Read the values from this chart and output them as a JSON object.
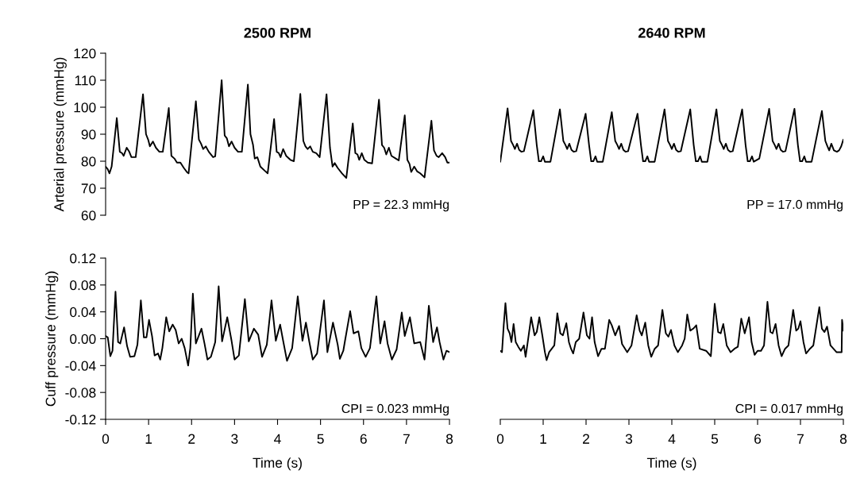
{
  "chart_data": [
    {
      "type": "line",
      "title": "2500 RPM",
      "ylabel": "Arterial pressure (mmHg)",
      "xlim": [
        0,
        8
      ],
      "ylim": [
        60,
        120
      ],
      "yticks": [
        60,
        70,
        80,
        90,
        100,
        110,
        120
      ],
      "tick_labels": "y",
      "annotations": [
        "PP = 22.3 mmHg"
      ],
      "series": [
        {
          "color": "#000000",
          "x": [
            0,
            0.05,
            0.09,
            0.14,
            0.26,
            0.33,
            0.38,
            0.42,
            0.49,
            0.55,
            0.6,
            0.7,
            0.87,
            0.94,
            0.99,
            1.03,
            1.1,
            1.17,
            1.25,
            1.33,
            1.47,
            1.53,
            1.6,
            1.66,
            1.74,
            1.82,
            1.9,
            1.93,
            2.1,
            2.17,
            2.22,
            2.27,
            2.33,
            2.4,
            2.5,
            2.55,
            2.7,
            2.77,
            2.82,
            2.87,
            2.93,
            3.0,
            3.08,
            3.17,
            3.31,
            3.37,
            3.43,
            3.47,
            3.53,
            3.6,
            3.7,
            3.77,
            3.92,
            3.98,
            4.03,
            4.07,
            4.13,
            4.2,
            4.3,
            4.38,
            4.53,
            4.6,
            4.65,
            4.7,
            4.76,
            4.82,
            4.9,
            4.98,
            5.14,
            5.22,
            5.28,
            5.33,
            5.4,
            5.5,
            5.6,
            5.75,
            5.81,
            5.86,
            5.9,
            5.96,
            6.02,
            6.1,
            6.2,
            6.36,
            6.43,
            6.48,
            6.53,
            6.59,
            6.65,
            6.75,
            6.82,
            6.96,
            7.02,
            7.07,
            7.11,
            7.18,
            7.25,
            7.32,
            7.42,
            7.58,
            7.64,
            7.7,
            7.75,
            7.83,
            7.9,
            7.95,
            8.0
          ],
          "values": [
            78,
            77,
            75.5,
            78,
            96,
            83.5,
            83,
            82,
            85,
            83.5,
            81.5,
            81.5,
            104.8,
            90,
            88,
            85.5,
            87.3,
            85,
            83.5,
            83.5,
            99.7,
            82,
            81,
            79.5,
            79.5,
            77.5,
            75.8,
            75.5,
            102.2,
            88,
            86.5,
            84.5,
            85.5,
            83.5,
            81.5,
            81.8,
            110,
            89.5,
            88.5,
            85.5,
            87.3,
            85,
            83.5,
            83.5,
            108.4,
            90,
            86,
            81,
            81.5,
            78,
            76.5,
            75.5,
            95.6,
            83.5,
            83,
            81.5,
            84.5,
            82,
            80.5,
            80,
            104.9,
            87.5,
            85.5,
            84.5,
            85.5,
            83.5,
            83,
            81.5,
            104.8,
            85,
            78,
            79.3,
            77.5,
            75.5,
            73.8,
            94,
            83,
            82.5,
            80.5,
            83,
            80.5,
            79.5,
            79.2,
            102.8,
            86,
            85,
            82.5,
            85,
            82,
            81,
            80.3,
            97,
            80.5,
            79,
            76,
            78,
            76.2,
            75.5,
            74,
            95,
            84,
            82,
            81.5,
            83,
            81.5,
            79.5,
            79.5
          ]
        }
      ]
    },
    {
      "type": "line",
      "title": "2640 RPM",
      "xlim": [
        0,
        8
      ],
      "ylim": [
        60,
        120
      ],
      "tick_labels": false,
      "annotations": [
        "PP = 17.0 mmHg"
      ],
      "series": [
        {
          "color": "#000000",
          "x": [
            0,
            0.17,
            0.25,
            0.3,
            0.34,
            0.39,
            0.44,
            0.49,
            0.55,
            0.77,
            0.85,
            0.9,
            0.95,
            1.0,
            1.04,
            1.17,
            1.39,
            1.47,
            1.52,
            1.56,
            1.61,
            1.66,
            1.71,
            1.77,
            1.99,
            2.07,
            2.12,
            2.17,
            2.22,
            2.26,
            2.39,
            2.6,
            2.68,
            2.73,
            2.77,
            2.82,
            2.87,
            2.92,
            2.98,
            3.2,
            3.28,
            3.33,
            3.38,
            3.43,
            3.47,
            3.6,
            3.83,
            3.91,
            3.96,
            4.0,
            4.05,
            4.1,
            4.15,
            4.21,
            4.43,
            4.51,
            4.56,
            4.61,
            4.66,
            4.7,
            4.83,
            5.04,
            5.12,
            5.17,
            5.21,
            5.26,
            5.31,
            5.36,
            5.42,
            5.64,
            5.72,
            5.77,
            5.82,
            5.87,
            5.91,
            6.04,
            6.27,
            6.35,
            6.4,
            6.44,
            6.49,
            6.54,
            6.59,
            6.65,
            6.86,
            6.94,
            6.99,
            7.04,
            7.09,
            7.13,
            7.26,
            7.5,
            7.58,
            7.63,
            7.67,
            7.72,
            7.78,
            7.85,
            7.9,
            7.95,
            8.0
          ],
          "values": [
            79.8,
            99.6,
            87.5,
            86,
            84.5,
            86.5,
            84.2,
            83.5,
            83.7,
            98.9,
            86,
            80,
            80,
            81.8,
            79.8,
            79.8,
            99.2,
            87.5,
            86,
            84.5,
            86.5,
            84.2,
            83.5,
            83.7,
            97.6,
            86,
            80,
            80,
            81.8,
            79.8,
            79.8,
            98.2,
            87.5,
            86,
            84.5,
            86.5,
            84.2,
            83.5,
            83.7,
            97.6,
            86,
            80,
            80,
            81.8,
            79.8,
            79.8,
            99.2,
            87.5,
            86,
            84.5,
            86.5,
            84.2,
            83.5,
            83.7,
            99.2,
            86,
            80,
            80,
            81.8,
            79.8,
            79.8,
            99.2,
            87.5,
            86,
            84.5,
            86.5,
            84.2,
            83.5,
            83.7,
            99.2,
            86,
            80,
            80,
            81.8,
            79.8,
            81,
            99.4,
            87.5,
            86,
            84.5,
            86.5,
            84.2,
            83.5,
            83.7,
            99.4,
            86,
            80,
            80,
            81.8,
            79.8,
            79.8,
            98.6,
            87.5,
            85.5,
            84,
            86.5,
            84,
            83.5,
            84,
            85.5,
            88
          ]
        }
      ]
    },
    {
      "type": "line",
      "xlabel": "Time (s)",
      "ylabel": "Cuff pressure (mmHg)",
      "xlim": [
        0,
        8
      ],
      "xticks": [
        0,
        1,
        2,
        3,
        4,
        5,
        6,
        7,
        8
      ],
      "ylim": [
        -0.12,
        0.12
      ],
      "yticks": [
        {
          "value": -0.12,
          "label": "-0.12"
        },
        {
          "value": -0.08,
          "label": "-0.08"
        },
        {
          "value": -0.04,
          "label": "-0.04"
        },
        {
          "value": 0,
          "label": "0.00"
        },
        {
          "value": 0.04,
          "label": "0.04"
        },
        {
          "value": 0.08,
          "label": "0.08"
        },
        {
          "value": 0.12,
          "label": "0.12"
        }
      ],
      "annotations": [
        "CPI = 0.023 mmHg"
      ],
      "series": [
        {
          "color": "#000000",
          "x": [
            0,
            0.05,
            0.11,
            0.16,
            0.23,
            0.29,
            0.34,
            0.43,
            0.5,
            0.57,
            0.67,
            0.74,
            0.82,
            0.89,
            0.95,
            1.01,
            1.08,
            1.14,
            1.22,
            1.27,
            1.32,
            1.41,
            1.48,
            1.56,
            1.63,
            1.7,
            1.77,
            1.84,
            1.92,
            1.97,
            2.03,
            2.1,
            2.23,
            2.3,
            2.37,
            2.45,
            2.55,
            2.63,
            2.71,
            2.83,
            2.93,
            3.0,
            3.1,
            3.24,
            3.33,
            3.45,
            3.55,
            3.64,
            3.75,
            3.86,
            3.96,
            4.06,
            4.13,
            4.22,
            4.34,
            4.47,
            4.58,
            4.66,
            4.74,
            4.82,
            4.92,
            5.08,
            5.16,
            5.29,
            5.4,
            5.45,
            5.53,
            5.57,
            5.69,
            5.77,
            5.88,
            5.95,
            6.05,
            6.15,
            6.3,
            6.39,
            6.49,
            6.56,
            6.66,
            6.77,
            6.89,
            6.96,
            7.08,
            7.18,
            7.32,
            7.42,
            7.52,
            7.62,
            7.71,
            7.77,
            7.86,
            7.93,
            8.0
          ],
          "values": [
            0.004,
            0.002,
            -0.026,
            -0.018,
            0.07,
            -0.005,
            -0.007,
            0.017,
            -0.011,
            -0.027,
            -0.026,
            -0.009,
            0.057,
            0.002,
            0.002,
            0.028,
            0.004,
            -0.025,
            -0.022,
            -0.031,
            -0.014,
            0.032,
            0.011,
            0.021,
            0.013,
            -0.007,
            0,
            -0.014,
            -0.04,
            -0.014,
            0.067,
            -0.007,
            0.015,
            -0.007,
            -0.031,
            -0.027,
            -0.005,
            0.078,
            -0.004,
            0.032,
            -0.003,
            -0.031,
            -0.025,
            0.059,
            -0.004,
            0.015,
            0.006,
            -0.027,
            -0.009,
            0.057,
            -0.003,
            0.021,
            -0.003,
            -0.033,
            -0.014,
            0.063,
            -0.003,
            0.024,
            -0.005,
            -0.031,
            -0.022,
            0.057,
            -0.02,
            0.024,
            -0.009,
            -0.03,
            -0.018,
            -0.003,
            0.041,
            0.008,
            0.011,
            -0.014,
            -0.027,
            -0.014,
            0.063,
            -0.007,
            0.026,
            -0.007,
            -0.031,
            -0.016,
            0.039,
            0.004,
            0.032,
            -0.007,
            -0.005,
            -0.031,
            0.049,
            -0.005,
            0.017,
            -0.005,
            -0.031,
            -0.018,
            -0.02
          ]
        }
      ]
    },
    {
      "type": "line",
      "xlabel": "Time (s)",
      "xlim": [
        0,
        8
      ],
      "xticks": [
        0,
        1,
        2,
        3,
        4,
        5,
        6,
        7,
        8
      ],
      "ylim": [
        -0.12,
        0.12
      ],
      "tick_labels": "x",
      "annotations": [
        "CPI = 0.017 mmHg"
      ],
      "series": [
        {
          "color": "#000000",
          "x": [
            0,
            0.04,
            0.08,
            0.12,
            0.17,
            0.22,
            0.26,
            0.31,
            0.36,
            0.42,
            0.48,
            0.55,
            0.59,
            0.64,
            0.72,
            0.8,
            0.85,
            0.91,
            0.98,
            1.04,
            1.08,
            1.14,
            1.2,
            1.26,
            1.33,
            1.4,
            1.46,
            1.54,
            1.6,
            1.65,
            1.7,
            1.76,
            1.84,
            1.94,
            2.02,
            2.08,
            2.14,
            2.2,
            2.28,
            2.36,
            2.44,
            2.54,
            2.6,
            2.68,
            2.77,
            2.84,
            2.96,
            3.06,
            3.18,
            3.25,
            3.3,
            3.38,
            3.45,
            3.52,
            3.6,
            3.68,
            3.78,
            3.86,
            3.92,
            3.98,
            4.06,
            4.14,
            4.24,
            4.3,
            4.36,
            4.43,
            4.5,
            4.57,
            4.65,
            4.8,
            4.91,
            5.0,
            5.08,
            5.14,
            5.2,
            5.28,
            5.37,
            5.46,
            5.54,
            5.62,
            5.7,
            5.8,
            5.86,
            5.93,
            6.0,
            6.08,
            6.15,
            6.23,
            6.3,
            6.35,
            6.42,
            6.49,
            6.56,
            6.64,
            6.72,
            6.83,
            6.9,
            6.95,
            7.0,
            7.07,
            7.13,
            7.22,
            7.3,
            7.44,
            7.5,
            7.56,
            7.62,
            7.7,
            7.84,
            7.96,
            7.97,
            8.0
          ],
          "values": [
            -0.018,
            -0.02,
            0.02,
            0.053,
            0.015,
            0.008,
            -0.005,
            0.022,
            -0.005,
            -0.012,
            -0.018,
            -0.01,
            -0.027,
            -0.005,
            0.032,
            0.005,
            0.01,
            0.032,
            0.005,
            -0.02,
            -0.032,
            -0.02,
            -0.015,
            -0.01,
            0.038,
            0.008,
            0.005,
            0.023,
            -0.005,
            -0.015,
            -0.022,
            -0.005,
            0,
            0.039,
            0.005,
            0,
            0.032,
            -0.005,
            -0.026,
            -0.015,
            -0.015,
            0.028,
            0.02,
            0.005,
            0.019,
            -0.008,
            -0.02,
            -0.01,
            0.035,
            0.012,
            0.005,
            0.024,
            -0.01,
            -0.027,
            -0.015,
            -0.01,
            0.043,
            0.008,
            0.003,
            0.013,
            -0.01,
            -0.02,
            -0.01,
            0,
            0.036,
            0.012,
            0.015,
            0.02,
            -0.015,
            -0.018,
            -0.026,
            0.052,
            0.01,
            0.008,
            0.022,
            -0.01,
            -0.02,
            -0.015,
            -0.012,
            0.03,
            0.008,
            0.032,
            -0.005,
            -0.024,
            -0.018,
            -0.018,
            -0.01,
            0.055,
            0.01,
            0.008,
            0.022,
            -0.01,
            -0.026,
            -0.015,
            -0.01,
            0.043,
            0.012,
            0.015,
            0.026,
            -0.005,
            -0.022,
            -0.015,
            -0.01,
            0.047,
            0.015,
            0.01,
            0.018,
            -0.01,
            -0.02,
            -0.02,
            0.028,
            0.012
          ]
        }
      ]
    }
  ]
}
